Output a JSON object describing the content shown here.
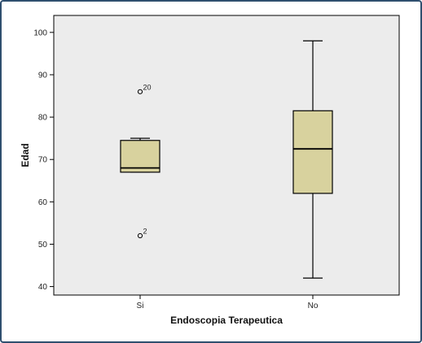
{
  "chart_data": {
    "type": "boxplot",
    "xlabel": "Endoscopia Terapeutica",
    "ylabel": "Edad",
    "ylim": [
      38,
      104
    ],
    "yticks": [
      40,
      50,
      60,
      70,
      80,
      90,
      100
    ],
    "grid": false,
    "background_color": "#ececec",
    "box_color": "#d8d29e",
    "categories": [
      "Si",
      "No"
    ],
    "boxes": [
      {
        "category": "Si",
        "min": 67,
        "q1": 67,
        "median": 68,
        "q3": 74.5,
        "max": 75,
        "outliers": [
          {
            "value": 86,
            "label": "20"
          },
          {
            "value": 52,
            "label": "2"
          }
        ]
      },
      {
        "category": "No",
        "min": 42,
        "q1": 62,
        "median": 72.5,
        "q3": 81.5,
        "max": 98,
        "outliers": []
      }
    ]
  }
}
